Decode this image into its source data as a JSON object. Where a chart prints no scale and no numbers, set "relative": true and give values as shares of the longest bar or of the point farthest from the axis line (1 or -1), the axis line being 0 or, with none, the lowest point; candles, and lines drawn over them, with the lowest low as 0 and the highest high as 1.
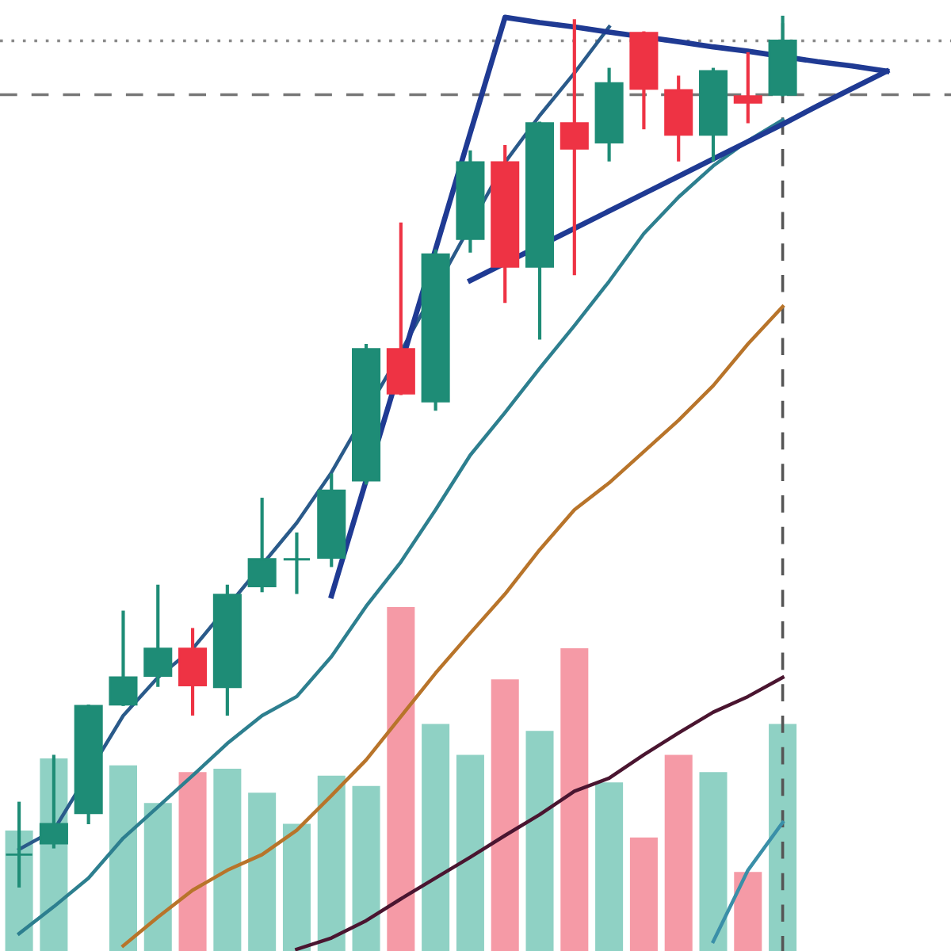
{
  "chart_data": [
    {
      "type": "candlestick",
      "relative": true,
      "categories": [
        null,
        null,
        null,
        null,
        null,
        null,
        null,
        null,
        null,
        null,
        null,
        null,
        null,
        null,
        null,
        null,
        null,
        null,
        null,
        null,
        null,
        null,
        null,
        null,
        null,
        null
      ],
      "ohlc": [
        [
          0.036,
          0.095,
          0,
          0.036
        ],
        [
          0.049,
          0.149,
          0.045,
          0.071
        ],
        [
          0.084,
          0.207,
          0.073,
          0.207
        ],
        [
          0.209,
          0.315,
          0.209,
          0.24
        ],
        [
          0.242,
          0.345,
          0.231,
          0.273
        ],
        [
          0.273,
          0.295,
          0.198,
          0.231
        ],
        [
          0.229,
          0.345,
          0.198,
          0.335
        ],
        [
          0.345,
          0.445,
          0.34,
          0.376
        ],
        [
          0.376,
          0.405,
          0.338,
          0.376
        ],
        [
          0.378,
          0.473,
          0.369,
          0.455
        ],
        [
          0.467,
          0.622,
          0.464,
          0.618
        ],
        [
          0.618,
          0.762,
          0.567,
          0.567
        ],
        [
          0.558,
          0.731,
          0.549,
          0.727
        ],
        [
          0.745,
          0.845,
          0.731,
          0.833
        ],
        [
          0.833,
          0.851,
          0.673,
          0.713
        ],
        [
          0.713,
          0.878,
          0.631,
          0.878
        ],
        [
          0.878,
          0.996,
          0.705,
          0.849
        ],
        [
          0.856,
          0.94,
          0.836,
          0.924
        ],
        [
          0.982,
          0.982,
          0.873,
          0.918
        ],
        [
          0.916,
          0.931,
          0.836,
          0.865
        ],
        [
          0.865,
          0.94,
          0.836,
          0.938
        ],
        [
          0.909,
          0.958,
          0.88,
          0.902
        ],
        [
          0.911,
          1,
          0.911,
          0.973
        ],
        null,
        null,
        null
      ],
      "colors": [
        "#1e8c76",
        "#1e8c76",
        "#1e8c76",
        "#1e8c76",
        "#1e8c76",
        "#ee3344",
        "#1e8c76",
        "#1e8c76",
        "#1e8c76",
        "#1e8c76",
        "#1e8c76",
        "#ee3344",
        "#1e8c76",
        "#1e8c76",
        "#ee3344",
        "#1e8c76",
        "#ee3344",
        "#1e8c76",
        "#ee3344",
        "#ee3344",
        "#1e8c76",
        "#ee3344",
        "#1e8c76",
        null,
        null,
        null
      ],
      "series": [
        {
          "type": "line",
          "color": "#2a5a8a",
          "values": [
            0.042,
            0.064,
            null,
            0.196,
            0.24,
            0.273,
            null,
            null,
            0.418,
            0.476,
            null,
            0.615,
            null,
            null,
            0.833,
            0.887,
            0.936,
            0.989,
            null,
            null,
            null,
            null,
            null,
            null,
            null,
            null
          ]
        },
        {
          "type": "line",
          "color": "#2d7f8f",
          "values": [
            -0.055,
            -0.024,
            0.009,
            0.055,
            0.091,
            0.127,
            0.164,
            0.196,
            0.218,
            0.264,
            0.322,
            0.373,
            0.433,
            0.496,
            0.545,
            0.596,
            0.645,
            0.696,
            0.751,
            0.793,
            0.829,
            0.858,
            0.882,
            null,
            null,
            null
          ]
        },
        {
          "type": "line",
          "color": "#b8742a",
          "values": [
            null,
            null,
            null,
            -0.069,
            -0.036,
            -0.005,
            0.018,
            0.036,
            0.064,
            0.104,
            0.145,
            0.195,
            0.245,
            0.291,
            0.336,
            0.387,
            0.433,
            0.464,
            0.5,
            0.536,
            0.576,
            0.624,
            0.667,
            null,
            null,
            null
          ]
        },
        {
          "type": "line",
          "color": "#4a1530",
          "values": [
            null,
            null,
            null,
            null,
            null,
            null,
            null,
            null,
            -0.073,
            -0.06,
            -0.04,
            -0.015,
            0.009,
            0.033,
            0.058,
            0.082,
            0.109,
            0.124,
            0.151,
            0.176,
            0.2,
            0.218,
            0.24,
            null,
            null,
            null
          ]
        },
        {
          "type": "line",
          "color": "#3a8fa8",
          "values": [
            null,
            null,
            null,
            null,
            null,
            null,
            null,
            null,
            null,
            null,
            null,
            null,
            null,
            null,
            null,
            null,
            null,
            null,
            null,
            null,
            -0.064,
            0.018,
            0.073,
            null,
            null,
            null
          ]
        },
        {
          "type": "line",
          "color": "#1f3a93",
          "values": [
            null,
            null,
            null,
            null,
            null,
            null,
            null,
            null,
            null,
            0.334,
            0.467,
            null,
            0.733,
            0.867,
            1,
            0.994,
            0.989,
            0.983,
            null,
            0.972,
            0.966,
            0.961,
            null,
            0.949,
            0.944,
            0.938
          ]
        },
        {
          "type": "line",
          "color": "#1f3a93",
          "values": [
            null,
            null,
            null,
            null,
            null,
            null,
            null,
            null,
            null,
            null,
            null,
            null,
            null,
            0.697,
            null,
            null,
            0.757,
            0.777,
            0.797,
            0.817,
            0.837,
            0.857,
            0.877,
            0.898,
            0.918,
            0.938
          ]
        }
      ],
      "ref_lines": [
        {
          "axis": "y",
          "value": 0.973,
          "line_style": "dotted",
          "color": "#888888"
        },
        {
          "axis": "y",
          "value": 0.911,
          "line_style": "dashed",
          "color": "#777777"
        }
      ]
    },
    {
      "type": "bar",
      "relative": true,
      "categories": [
        null,
        null,
        null,
        null,
        null,
        null,
        null,
        null,
        null,
        null,
        null,
        null,
        null,
        null,
        null,
        null,
        null,
        null,
        null,
        null,
        null,
        null,
        null,
        null,
        null,
        null
      ],
      "values": [
        0.35,
        0.56,
        null,
        0.54,
        0.43,
        0.52,
        0.53,
        0.46,
        0.37,
        0.51,
        0.48,
        1,
        0.66,
        0.57,
        0.79,
        0.64,
        0.88,
        0.49,
        0.33,
        0.57,
        0.52,
        0.23,
        0.66,
        null,
        null,
        null
      ],
      "colors": [
        "#8fd1c4",
        "#8fd1c4",
        "#8fd1c4",
        "#8fd1c4",
        "#8fd1c4",
        "#f59aa6",
        "#8fd1c4",
        "#8fd1c4",
        "#8fd1c4",
        "#8fd1c4",
        "#8fd1c4",
        "#f59aa6",
        "#8fd1c4",
        "#8fd1c4",
        "#f59aa6",
        "#8fd1c4",
        "#f59aa6",
        "#8fd1c4",
        "#f59aa6",
        "#f59aa6",
        "#8fd1c4",
        "#f59aa6",
        "#8fd1c4",
        null,
        null,
        null
      ]
    }
  ]
}
